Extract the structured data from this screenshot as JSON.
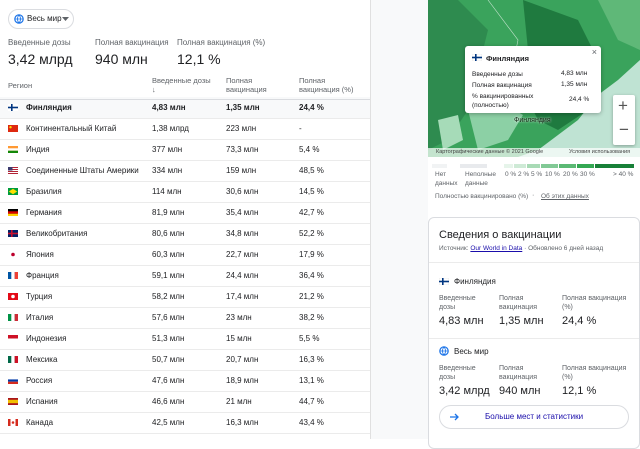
{
  "filter": "Весь мир",
  "summary": [
    {
      "label": "Введенные дозы",
      "value": "3,42 млрд"
    },
    {
      "label": "Полная вакцинация",
      "value": "940 млн"
    },
    {
      "label": "Полная вакцинация (%)",
      "value": "12,1 %"
    }
  ],
  "table": {
    "header": [
      "Регион",
      "Введенные дозы ↓",
      "Полная вакцинация",
      "Полная вакцинация (%)"
    ],
    "rows": [
      [
        "Финляндия",
        "4,83 млн",
        "1,35 млн",
        "24,4 %"
      ],
      [
        "Континентальный Китай",
        "1,38 млрд",
        "223 млн",
        "-"
      ],
      [
        "Индия",
        "377 млн",
        "73,3 млн",
        "5,4 %"
      ],
      [
        "Соединенные Штаты Америки",
        "334 млн",
        "159 млн",
        "48,5 %"
      ],
      [
        "Бразилия",
        "114 млн",
        "30,6 млн",
        "14,5 %"
      ],
      [
        "Германия",
        "81,9 млн",
        "35,4 млн",
        "42,7 %"
      ],
      [
        "Великобритания",
        "80,6 млн",
        "34,8 млн",
        "52,2 %"
      ],
      [
        "Япония",
        "60,3 млн",
        "22,7 млн",
        "17,9 %"
      ],
      [
        "Франция",
        "59,1 млн",
        "24,4 млн",
        "36,4 %"
      ],
      [
        "Турция",
        "58,2 млн",
        "17,4 млн",
        "21,2 %"
      ],
      [
        "Италия",
        "57,6 млн",
        "23 млн",
        "38,2 %"
      ],
      [
        "Индонезия",
        "51,3 млн",
        "15 млн",
        "5,5 %"
      ],
      [
        "Мексика",
        "50,7 млн",
        "20,7 млн",
        "16,3 %"
      ],
      [
        "Россия",
        "47,6 млн",
        "18,9 млн",
        "13,1 %"
      ],
      [
        "Испания",
        "46,6 млн",
        "21 млн",
        "44,7 %"
      ],
      [
        "Канада",
        "42,5 млн",
        "16,3 млн",
        "43,4 %"
      ]
    ]
  },
  "map": {
    "label": "Финляндия",
    "popup": {
      "title": "Финляндия",
      "rows": [
        [
          "Введенные дозы",
          "4,83 млн"
        ],
        [
          "Полная вакцинация",
          "1,35 млн"
        ],
        [
          "% вакцинированных (полностью)",
          "24,4 %"
        ]
      ]
    },
    "attribution": "Картографические данные © 2021 Google",
    "terms": "Условия использования",
    "legend": [
      "Нет данных",
      "Неполные данные",
      "0 %",
      "2 %",
      "5 %",
      "10 %",
      "20 %",
      "30 %",
      "> 40 %"
    ],
    "legend_title": "Полностью вакцинировано (%)",
    "about": "Об этих данных"
  },
  "card": {
    "title": "Сведения о вакцинации",
    "source_label": "Источник:",
    "source": "Our World in Data",
    "updated": "Обновлено 6 дней назад",
    "sections": [
      {
        "name": "Финляндия",
        "stats": [
          {
            "label": "Введенные дозы",
            "value": "4,83 млн"
          },
          {
            "label": "Полная вакцинация",
            "value": "1,35 млн"
          },
          {
            "label": "Полная вакцинация (%)",
            "value": "24,4 %"
          }
        ]
      },
      {
        "name": "Весь мир",
        "stats": [
          {
            "label": "Введенные дозы",
            "value": "3,42 млрд"
          },
          {
            "label": "Полная вакцинация",
            "value": "940 млн"
          },
          {
            "label": "Полная вакцинация (%)",
            "value": "12,1 %"
          }
        ]
      }
    ],
    "button": "Больше мест и статистики"
  }
}
